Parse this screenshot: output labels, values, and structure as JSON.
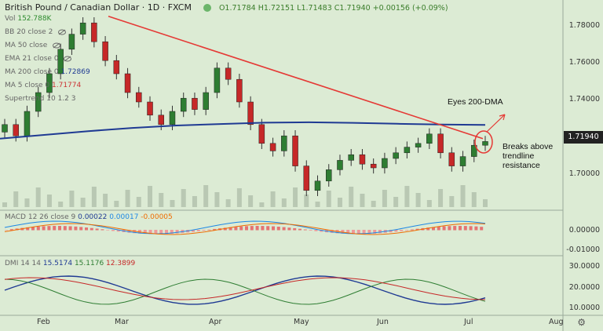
{
  "header": {
    "symbol": "British Pound / Canadian Dollar · 1D · FXCM",
    "ohlc": "O1.71784 H1.72151 L1.71483 C1.71940 +0.00156 (+0.09%)"
  },
  "legend": {
    "vol_label": "Vol",
    "vol_value": "152.788K",
    "bb": "BB 20 close 2",
    "ma50": "MA 50 close",
    "ema21": "EMA 21 close 0",
    "ma200_label": "MA 200 close 0",
    "ma200_value": "1.72869",
    "ma5_label": "MA 5 close 0",
    "ma5_value": "1.71774",
    "supertrend": "Supertrend 10 1.2 3"
  },
  "price_axis": [
    "1.78000",
    "1.76000",
    "1.74000",
    "1.70000"
  ],
  "last_price": "1.71940",
  "macd": {
    "label": "MACD 12 26 close 9",
    "v1": "0.00022",
    "v2": "0.00017",
    "v3": "-0.00005",
    "axis": [
      "0.00000",
      "-0.01000"
    ]
  },
  "dmi": {
    "label": "DMI 14 14",
    "v1": "15.5174",
    "v2": "15.1176",
    "v3": "12.3899",
    "axis": [
      "30.0000",
      "20.0000",
      "10.0000"
    ]
  },
  "date_labels": [
    "Feb",
    "Mar",
    "Apr",
    "May",
    "Jun",
    "Jul",
    "Aug"
  ],
  "annotations": {
    "eyes": "Eyes 200-DMA",
    "breaks1": "Breaks above",
    "breaks2": "trendline",
    "breaks3": "resistance"
  },
  "colors": {
    "bg": "#dcebd4",
    "up": "#2e7d32",
    "down": "#c62828",
    "ma200": "#1f3a93",
    "trendline": "#e53935"
  },
  "chart_data": {
    "type": "candlestick",
    "instrument": "GBP/CAD",
    "timeframe": "1D",
    "x_labels": [
      "Feb",
      "Mar",
      "Apr",
      "May",
      "Jun",
      "Jul",
      "Aug"
    ],
    "ylim": [
      1.69,
      1.79
    ],
    "close_series": [
      1.728,
      1.722,
      1.735,
      1.745,
      1.755,
      1.768,
      1.776,
      1.782,
      1.772,
      1.762,
      1.755,
      1.745,
      1.74,
      1.733,
      1.728,
      1.735,
      1.742,
      1.736,
      1.745,
      1.758,
      1.752,
      1.74,
      1.728,
      1.718,
      1.714,
      1.722,
      1.706,
      1.693,
      1.698,
      1.704,
      1.709,
      1.712,
      1.707,
      1.705,
      1.71,
      1.713,
      1.716,
      1.718,
      1.723,
      1.713,
      1.706,
      1.711,
      1.717,
      1.719
    ],
    "ma200_series": [
      1.7205,
      1.7225,
      1.7245,
      1.7262,
      1.7275,
      1.7283,
      1.729,
      1.7292,
      1.7289,
      1.7284,
      1.728,
      1.7278
    ],
    "trendline": {
      "from": 1.7855,
      "to": 1.7205
    },
    "macd_histogram_last": -5e-05,
    "dmi_last": [
      15.5174,
      15.1176,
      12.3899
    ]
  }
}
